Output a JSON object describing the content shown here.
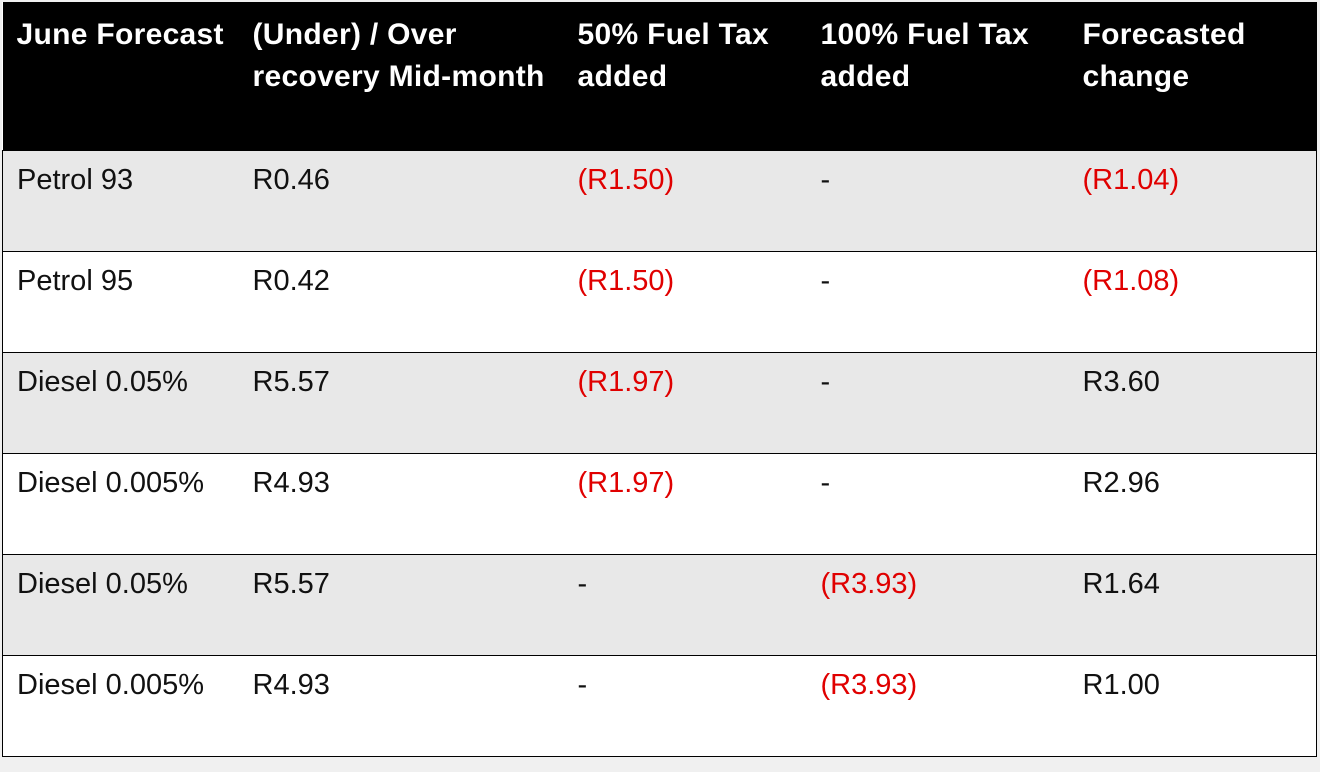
{
  "table": {
    "header": [
      "June Forecast",
      "(Under) / Over recovery Mid-month",
      "50% Fuel Tax added",
      "100% Fuel Tax added",
      "Forecasted change"
    ],
    "rows": [
      [
        "Petrol 93",
        "R0.46",
        "(R1.50)",
        "-",
        "(R1.04)"
      ],
      [
        "Petrol 95",
        "R0.42",
        "(R1.50)",
        "-",
        "(R1.08)"
      ],
      [
        "Diesel 0.05%",
        "R5.57",
        "(R1.97)",
        "-",
        "R3.60"
      ],
      [
        "Diesel 0.005%",
        "R4.93",
        "(R1.97)",
        "-",
        "R2.96"
      ],
      [
        "Diesel 0.05%",
        "R5.57",
        "-",
        "(R3.93)",
        "R1.64"
      ],
      [
        "Diesel 0.005%",
        "R4.93",
        "-",
        "(R3.93)",
        "R1.00"
      ]
    ]
  }
}
